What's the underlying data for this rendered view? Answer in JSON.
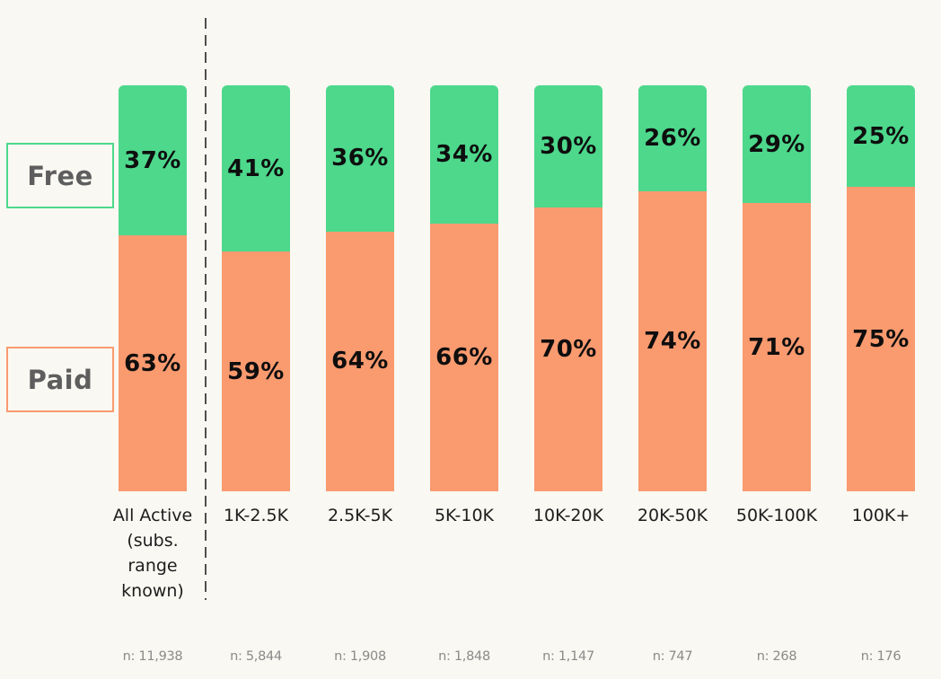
{
  "chart_data": {
    "type": "bar",
    "stacked": true,
    "orientation": "vertical",
    "title": "",
    "xlabel": "",
    "ylabel": "",
    "ylim": [
      0,
      100
    ],
    "value_unit": "%",
    "grid": false,
    "legend_position": "left",
    "separator_after_category_index": 0,
    "categories": [
      "All Active\n(subs.\nrange\nknown)",
      "1K-2.5K",
      "2.5K-5K",
      "5K-10K",
      "10K-20K",
      "20K-50K",
      "50K-100K",
      "100K+"
    ],
    "series": [
      {
        "name": "Free",
        "color": "#4DD88C",
        "values": [
          37,
          41,
          36,
          34,
          30,
          26,
          29,
          25
        ],
        "labels": [
          "37%",
          "41%",
          "36%",
          "34%",
          "30%",
          "26%",
          "29%",
          "25%"
        ]
      },
      {
        "name": "Paid",
        "color": "#FA9A6F",
        "values": [
          63,
          59,
          64,
          66,
          70,
          74,
          71,
          75
        ],
        "labels": [
          "63%",
          "59%",
          "64%",
          "66%",
          "70%",
          "74%",
          "71%",
          "75%"
        ]
      }
    ],
    "sample_sizes": [
      "n: 11,938",
      "n: 5,844",
      "n: 1,908",
      "n: 1,848",
      "n: 1,147",
      "n: 747",
      "n: 268",
      "n: 176"
    ]
  },
  "legend": {
    "free_label": "Free",
    "paid_label": "Paid"
  },
  "colors": {
    "background": "#FAF8F2",
    "free": "#4DD88C",
    "paid": "#FA9A6F",
    "legend_text": "#5E5E5E",
    "divider": "#4F4F4F",
    "percent_text": "#0E0E0E",
    "category_text": "#1D1D1D",
    "sample_size_text": "#8A8A8A"
  }
}
